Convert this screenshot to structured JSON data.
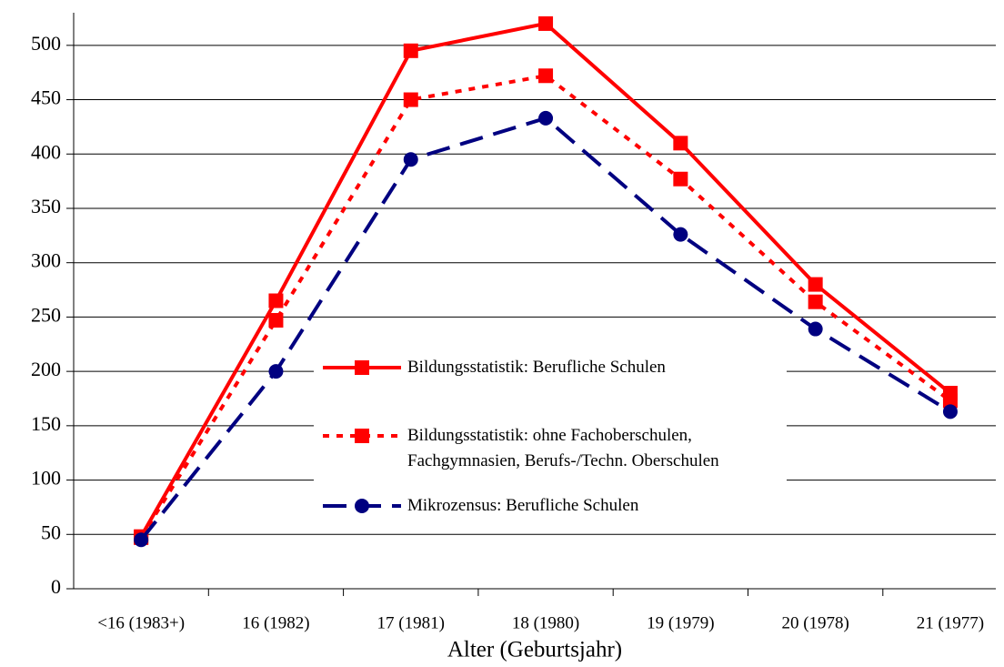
{
  "chart_data": {
    "type": "line",
    "x_label": "Alter (Geburtsjahr)",
    "categories": [
      "<16 (1983+)",
      "16 (1982)",
      "17 (1981)",
      "18 (1980)",
      "19 (1979)",
      "20 (1978)",
      "21 (1977)"
    ],
    "series": [
      {
        "name": "Bildungsstatistik: Berufliche Schulen",
        "color": "#ff0000",
        "line_style": "solid",
        "marker": "square",
        "values": [
          48,
          265,
          495,
          520,
          410,
          280,
          180
        ]
      },
      {
        "name": "Bildungsstatistik: ohne Fachoberschulen, Fachgymnasien, Berufs-/Techn. Oberschulen",
        "color": "#ff0000",
        "line_style": "dotted",
        "marker": "square",
        "values": [
          47,
          247,
          450,
          472,
          377,
          264,
          173
        ]
      },
      {
        "name": "Mikrozensus: Berufliche Schulen",
        "color": "#000080",
        "line_style": "dashed",
        "marker": "circle",
        "values": [
          45,
          200,
          395,
          433,
          326,
          239,
          163
        ]
      }
    ],
    "ylim": [
      0,
      530
    ],
    "yticks": [
      0,
      50,
      100,
      150,
      200,
      250,
      300,
      350,
      400,
      450,
      500
    ],
    "grid": true
  }
}
